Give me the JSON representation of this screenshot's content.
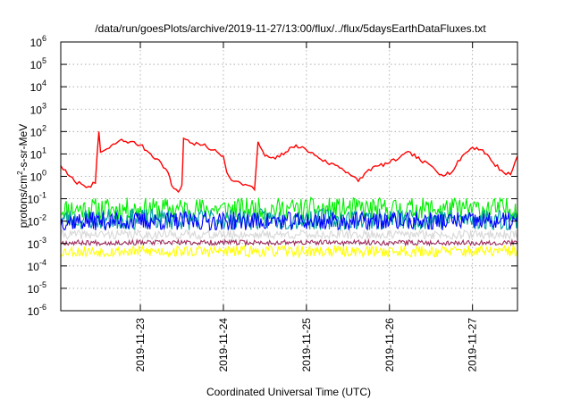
{
  "chart_data": {
    "type": "line",
    "title": "/data/run/goesPlots/archive/2019-11-27/13:00/flux/../flux/5daysEarthDataFluxes.txt",
    "xlabel": "Coordinated Universal Time (UTC)",
    "ylabel": {
      "base": "protons/cm",
      "sup": "2",
      "rest": "-s-sr-MeV"
    },
    "yscale": "log",
    "ylim": [
      1e-06,
      1000000.0
    ],
    "xlim": [
      "2019-11-22T01:00",
      "2019-11-27T13:00"
    ],
    "grid": true,
    "y_ticks": [
      {
        "value": 1e-06,
        "base": "10",
        "exp": "-6"
      },
      {
        "value": 1e-05,
        "base": "10",
        "exp": "-5"
      },
      {
        "value": 0.0001,
        "base": "10",
        "exp": "-4"
      },
      {
        "value": 0.001,
        "base": "10",
        "exp": "-3"
      },
      {
        "value": 0.01,
        "base": "10",
        "exp": "-2"
      },
      {
        "value": 0.1,
        "base": "10",
        "exp": "-1"
      },
      {
        "value": 1,
        "base": "10",
        "exp": "0"
      },
      {
        "value": 10.0,
        "base": "10",
        "exp": "1"
      },
      {
        "value": 100.0,
        "base": "10",
        "exp": "2"
      },
      {
        "value": 1000.0,
        "base": "10",
        "exp": "3"
      },
      {
        "value": 10000.0,
        "base": "10",
        "exp": "4"
      },
      {
        "value": 100000.0,
        "base": "10",
        "exp": "5"
      },
      {
        "value": 1000000.0,
        "base": "10",
        "exp": "6"
      }
    ],
    "x_ticks": [
      {
        "value": "2019-11-23T00:00",
        "label": "2019-11-23"
      },
      {
        "value": "2019-11-24T00:00",
        "label": "2019-11-24"
      },
      {
        "value": "2019-11-25T00:00",
        "label": "2019-11-25"
      },
      {
        "value": "2019-11-26T00:00",
        "label": "2019-11-26"
      },
      {
        "value": "2019-11-27T00:00",
        "label": "2019-11-27"
      }
    ],
    "series": [
      {
        "color": "#ff0000",
        "style": "trace",
        "x": [
          "2019-11-22T01:00",
          "2019-11-22T03:00",
          "2019-11-22T05:00",
          "2019-11-22T07:00",
          "2019-11-22T09:00",
          "2019-11-22T11:00",
          "2019-11-22T12:00",
          "2019-11-22T12:30",
          "2019-11-22T15:00",
          "2019-11-22T18:00",
          "2019-11-22T21:00",
          "2019-11-23T00:00",
          "2019-11-23T03:00",
          "2019-11-23T06:00",
          "2019-11-23T08:00",
          "2019-11-23T09:00",
          "2019-11-23T11:00",
          "2019-11-23T12:00",
          "2019-11-23T12:30",
          "2019-11-23T15:00",
          "2019-11-23T18:00",
          "2019-11-23T21:00",
          "2019-11-24T00:00",
          "2019-11-24T01:00",
          "2019-11-24T03:00",
          "2019-11-24T05:00",
          "2019-11-24T07:00",
          "2019-11-24T09:00",
          "2019-11-24T10:00",
          "2019-11-24T12:00",
          "2019-11-24T15:00",
          "2019-11-24T18:00",
          "2019-11-24T21:00",
          "2019-11-25T00:00",
          "2019-11-25T03:00",
          "2019-11-25T06:00",
          "2019-11-25T09:00",
          "2019-11-25T12:00",
          "2019-11-25T15:00",
          "2019-11-25T18:00",
          "2019-11-25T21:00",
          "2019-11-26T00:00",
          "2019-11-26T03:00",
          "2019-11-26T06:00",
          "2019-11-26T09:00",
          "2019-11-26T12:00",
          "2019-11-26T15:00",
          "2019-11-26T18:00",
          "2019-11-26T21:00",
          "2019-11-27T00:00",
          "2019-11-27T03:00",
          "2019-11-27T06:00",
          "2019-11-27T09:00",
          "2019-11-27T11:00",
          "2019-11-27T13:00"
        ],
        "values": [
          3,
          1.2,
          0.6,
          0.45,
          0.35,
          0.5,
          100,
          12,
          18,
          40,
          35,
          25,
          10,
          4,
          1.5,
          0.4,
          0.2,
          0.4,
          50,
          30,
          25,
          15,
          8,
          1.5,
          0.6,
          0.5,
          0.4,
          0.25,
          35,
          8,
          6,
          12,
          25,
          15,
          8,
          4,
          3,
          1.5,
          0.6,
          2,
          3,
          4,
          7,
          12,
          5,
          3,
          1.2,
          1.5,
          8,
          20,
          15,
          4,
          1.5,
          1.2,
          8
        ]
      },
      {
        "color": "#00ee00",
        "style": "band",
        "center": 0.035,
        "spread": 3.2,
        "seed": 11
      },
      {
        "color": "#00a0a0",
        "style": "band",
        "center": 0.012,
        "spread": 3.0,
        "seed": 23
      },
      {
        "color": "#0000ff",
        "style": "band",
        "center": 0.01,
        "spread": 2.6,
        "seed": 37
      },
      {
        "color": "#d8d8d8",
        "style": "band",
        "center": 0.0025,
        "spread": 1.6,
        "seed": 41
      },
      {
        "color": "#ffff00",
        "style": "band",
        "center": 0.00045,
        "spread": 1.8,
        "seed": 53
      },
      {
        "color": "#a03060",
        "style": "band",
        "center": 0.0011,
        "spread": 1.3,
        "seed": 67
      }
    ]
  }
}
